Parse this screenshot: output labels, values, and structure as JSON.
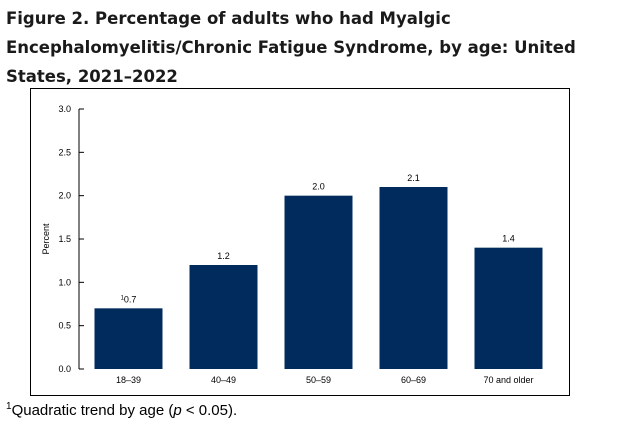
{
  "title_lines": [
    "Figure 2. Percentage of adults who had Myalgic",
    "Encephalomyelitis/Chronic Fatigue Syndrome, by age: United",
    "States, 2021–2022"
  ],
  "footnote": {
    "marker": "1",
    "text_before": "Quadratic trend by age (",
    "italic": "p",
    "text_after": " < 0.05)."
  },
  "colors": {
    "bar": "#002b5c",
    "axis": "#000000"
  },
  "chart_data": {
    "type": "bar",
    "title": "Figure 2. Percentage of adults who had Myalgic Encephalomyelitis/Chronic Fatigue Syndrome, by age: United States, 2021–2022",
    "xlabel": "",
    "ylabel": "Percent",
    "ylim": [
      0,
      3.0
    ],
    "yticks": [
      "0.0",
      "0.5",
      "1.0",
      "1.5",
      "2.0",
      "2.5",
      "3.0"
    ],
    "categories": [
      "18–39",
      "40–49",
      "50–59",
      "60–69",
      "70 and older"
    ],
    "values": [
      0.7,
      1.2,
      2.0,
      2.1,
      1.4
    ],
    "value_labels": [
      "0.7",
      "1.2",
      "2.0",
      "2.1",
      "1.4"
    ],
    "label_superscripts": [
      "1",
      "",
      "",
      "",
      ""
    ],
    "grid": false,
    "legend": "none"
  }
}
